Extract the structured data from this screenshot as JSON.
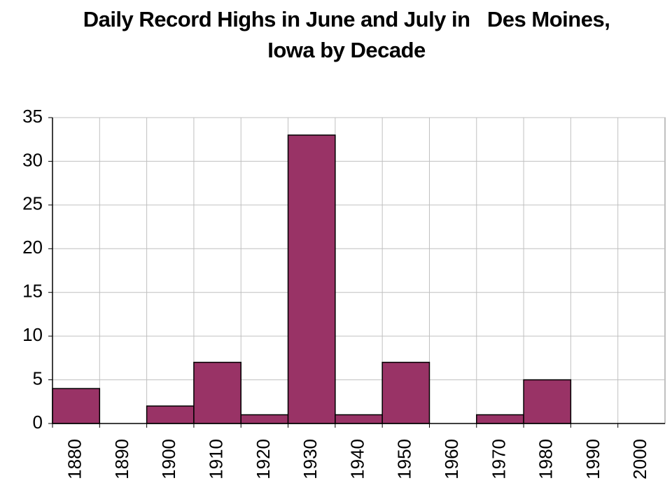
{
  "chart_data": {
    "type": "bar",
    "title": "Daily Record Highs in June and July in   Des Moines, Iowa by Decade",
    "categories": [
      "1880",
      "1890",
      "1900",
      "1910",
      "1920",
      "1930",
      "1940",
      "1950",
      "1960",
      "1970",
      "1980",
      "1990",
      "2000"
    ],
    "values": [
      4,
      0,
      2,
      7,
      1,
      33,
      1,
      7,
      0,
      1,
      5,
      0,
      0
    ],
    "color": "#993366",
    "ylim": [
      0,
      35
    ],
    "yticks": [
      0,
      5,
      10,
      15,
      20,
      25,
      30,
      35
    ],
    "grid": true
  }
}
